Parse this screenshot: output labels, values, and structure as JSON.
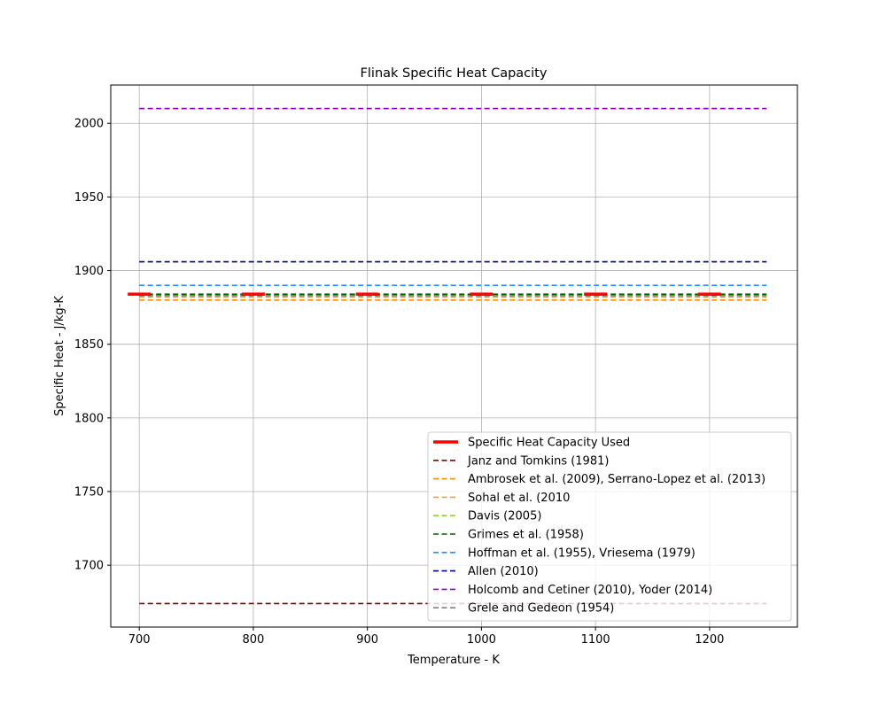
{
  "chart_data": {
    "type": "line",
    "title": "Flinak Specific Heat Capacity",
    "xlabel": "Temperature - K",
    "ylabel": "Specific Heat - J/kg-K",
    "xlim": [
      675,
      1277
    ],
    "ylim": [
      1658,
      2026
    ],
    "xticks": [
      700,
      800,
      900,
      1000,
      1100,
      1200
    ],
    "yticks": [
      1700,
      1750,
      1800,
      1850,
      1900,
      1950,
      2000
    ],
    "grid": true,
    "legend_position": "lower-right",
    "x": [
      700,
      1250
    ],
    "series": [
      {
        "name": "Janz and Tomkins (1981)",
        "values": [
          1674,
          1674
        ],
        "color": "#8b0000",
        "style": "dashed"
      },
      {
        "name": "Ambrosek et al. (2009), Serrano-Lopez et al. (2013)",
        "values": [
          1880,
          1880
        ],
        "color": "#ff8c00",
        "style": "dashed"
      },
      {
        "name": "Sohal et al. (2010",
        "values": [
          1882,
          1882
        ],
        "color": "#f0a030",
        "style": "dashed"
      },
      {
        "name": "Davis (2005)",
        "values": [
          1883,
          1883
        ],
        "color": "#9acd32",
        "style": "dashed"
      },
      {
        "name": "Grimes et al. (1958)",
        "values": [
          1884,
          1884
        ],
        "color": "#006400",
        "style": "dashed"
      },
      {
        "name": "Hoffman et al. (1955), Vriesema (1979)",
        "values": [
          1890,
          1890
        ],
        "color": "#1e90ff",
        "style": "dashed"
      },
      {
        "name": "Allen (2010)",
        "values": [
          1906,
          1906
        ],
        "color": "#000080",
        "style": "dashed"
      },
      {
        "name": "Holcomb and Cetiner (2010), Yoder (2014)",
        "values": [
          2010,
          2010
        ],
        "color": "#9400d3",
        "style": "dashed"
      },
      {
        "name": "Grele and Gedeon (1954)",
        "values": [
          1883,
          1883
        ],
        "color": "#808080",
        "style": "dashed"
      }
    ],
    "used_series": {
      "name": "Specific Heat Capacity Used",
      "color": "#ff0000",
      "style": "solid-thick",
      "x": [
        700,
        800,
        900,
        1000,
        1100,
        1200
      ],
      "values": [
        1884,
        1884,
        1884,
        1884,
        1884,
        1884
      ]
    }
  }
}
